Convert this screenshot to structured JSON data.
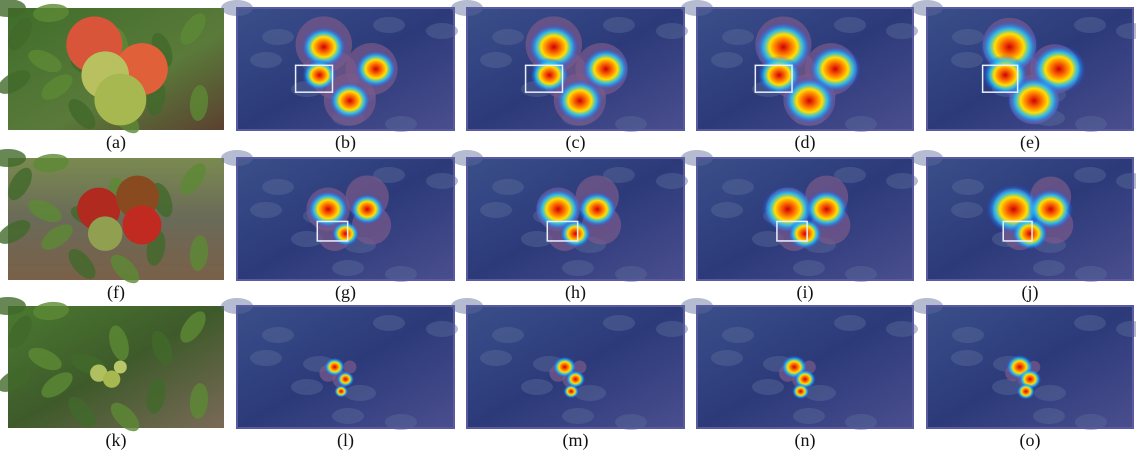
{
  "rows": [
    [
      "(a)",
      "(b)",
      "(c)",
      "(d)",
      "(e)"
    ],
    [
      "(f)",
      "(g)",
      "(h)",
      "(i)",
      "(j)"
    ],
    [
      "(k)",
      "(l)",
      "(m)",
      "(n)",
      "(o)"
    ]
  ]
}
